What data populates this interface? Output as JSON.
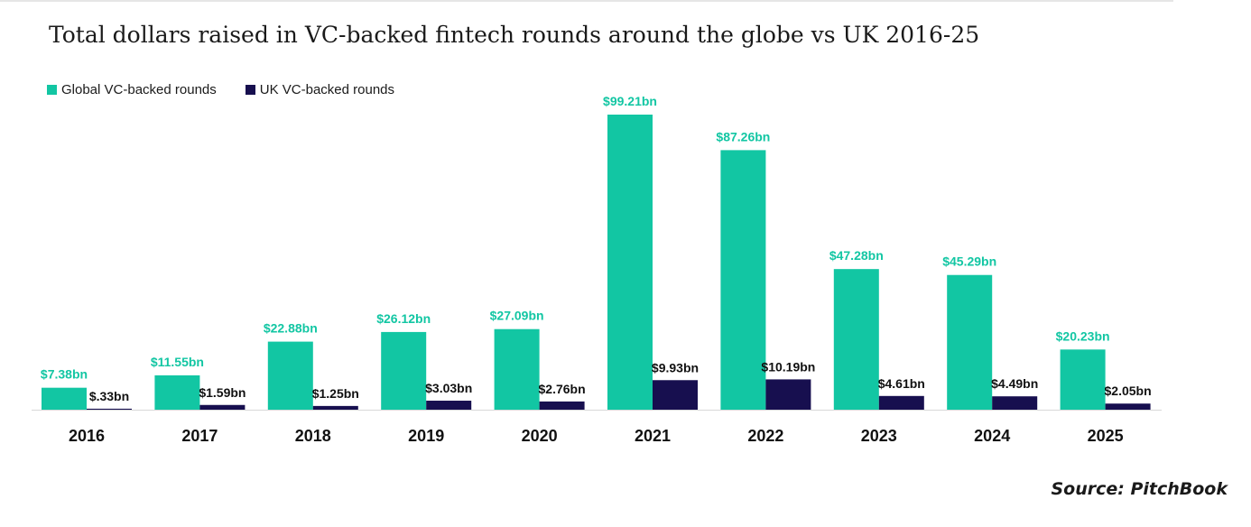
{
  "chart_data": {
    "type": "bar",
    "title": "Total dollars raised in VC-backed fintech rounds around the globe vs UK 2016-25",
    "xlabel": "",
    "ylabel": "",
    "ylim": [
      0,
      100
    ],
    "grid": false,
    "legend_position": "top-left",
    "categories": [
      "2016",
      "2017",
      "2018",
      "2019",
      "2020",
      "2021",
      "2022",
      "2023",
      "2024",
      "2025"
    ],
    "series": [
      {
        "name": "Global VC-backed rounds",
        "color": "#12c6a3",
        "values": [
          7.38,
          11.55,
          22.88,
          26.12,
          27.09,
          99.21,
          87.26,
          47.28,
          45.29,
          20.23
        ],
        "labels": [
          "$7.38bn",
          "$11.55bn",
          "$22.88bn",
          "$26.12bn",
          "$27.09bn",
          "$99.21bn",
          "$87.26bn",
          "$47.28bn",
          "$45.29bn",
          "$20.23bn"
        ]
      },
      {
        "name": "UK VC-backed rounds",
        "color": "#170f4f",
        "values": [
          0.33,
          1.59,
          1.25,
          3.03,
          2.76,
          9.93,
          10.19,
          4.61,
          4.49,
          2.05
        ],
        "labels": [
          "$.33bn",
          "$1.59bn",
          "$1.25bn",
          "$3.03bn",
          "$2.76bn",
          "$9.93bn",
          "$10.19bn",
          "$4.61bn",
          "$4.49bn",
          "$2.05bn"
        ]
      }
    ],
    "source": "Source: PitchBook"
  }
}
